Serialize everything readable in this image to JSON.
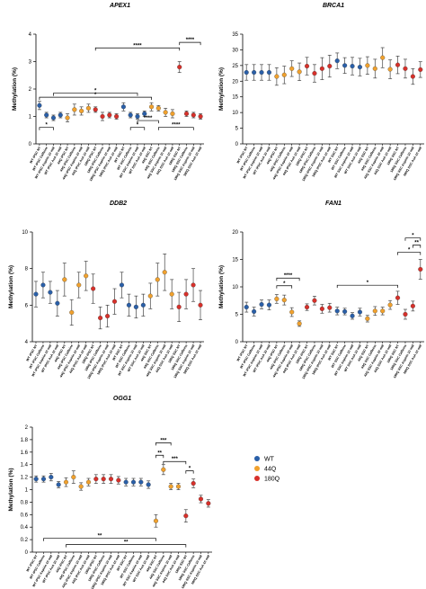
{
  "legend": [
    {
      "label": "WT",
      "color": "#2a5fa8"
    },
    {
      "label": "44Q",
      "color": "#f0a12e"
    },
    {
      "label": "180Q",
      "color": "#d7302a"
    }
  ],
  "chart_data": [
    {
      "type": "scatter",
      "title": "APEX1",
      "ylabel": "Methylation (%)",
      "ylim": [
        0,
        4
      ],
      "yticks": [
        0,
        1,
        2,
        3,
        4
      ],
      "categories": [
        "WT iPSC NT",
        "WT iPSC Caffeine",
        "WT iPSC Aspirin 10 mM",
        "WT iPSC AsA 10 mM",
        "44Q iPSC NT",
        "44Q iPSC Caffeine",
        "44Q iPSC Aspirin 10 mM",
        "44Q iPSC AsA 10 mM",
        "180Q iPSC NT",
        "180Q iPSC Caffeine",
        "180Q iPSC Aspirin 10 mM",
        "180Q iPSC AsA 10 mM",
        "WT SSC NT",
        "WT SSC Caffeine",
        "WT SSC Aspirin 10 mM",
        "WT SSC AsA 10 mM",
        "44Q SSC NT",
        "44Q SSC Caffeine",
        "44Q SSC Aspirin 10 mM",
        "44Q SSC AsA 10 mM",
        "180Q SSC NT",
        "180Q SSC Caffeine",
        "180Q SSC Aspirin 10 mM",
        "180Q SSC AsA 10 mM"
      ],
      "groups": [
        "WT",
        "WT",
        "WT",
        "WT",
        "44Q",
        "44Q",
        "44Q",
        "44Q",
        "180Q",
        "180Q",
        "180Q",
        "180Q",
        "WT",
        "WT",
        "WT",
        "WT",
        "44Q",
        "44Q",
        "44Q",
        "44Q",
        "180Q",
        "180Q",
        "180Q",
        "180Q"
      ],
      "values": [
        1.4,
        1.05,
        0.95,
        1.05,
        0.95,
        1.25,
        1.2,
        1.3,
        1.25,
        1.0,
        1.05,
        1.0,
        1.35,
        1.05,
        1.0,
        1.1,
        1.35,
        1.3,
        1.15,
        1.1,
        2.8,
        1.1,
        1.05,
        1.0
      ],
      "errors": [
        0.15,
        0.1,
        0.1,
        0.1,
        0.15,
        0.2,
        0.15,
        0.15,
        0.1,
        0.15,
        0.1,
        0.1,
        0.15,
        0.1,
        0.1,
        0.1,
        0.15,
        0.1,
        0.15,
        0.15,
        0.2,
        0.1,
        0.1,
        0.1
      ],
      "brackets": [
        {
          "from": 0,
          "to": 2,
          "y": 0.6,
          "label": "*"
        },
        {
          "from": 2,
          "to": 14,
          "y": 1.85,
          "label": "*"
        },
        {
          "from": 0,
          "to": 16,
          "y": 1.7,
          "label": "*"
        },
        {
          "from": 13,
          "to": 15,
          "y": 0.6,
          "label": "*"
        },
        {
          "from": 14,
          "to": 17,
          "y": 0.85,
          "label": "****"
        },
        {
          "from": 17,
          "to": 22,
          "y": 0.6,
          "label": "****"
        },
        {
          "from": 8,
          "to": 20,
          "y": 3.5,
          "label": "****"
        },
        {
          "from": 20,
          "to": 23,
          "y": 3.7,
          "label": "****"
        }
      ]
    },
    {
      "type": "scatter",
      "title": "BRCA1",
      "ylabel": "Methylation (%)",
      "ylim": [
        0,
        35
      ],
      "yticks": [
        0,
        5,
        10,
        15,
        20,
        25,
        30,
        35
      ],
      "categories": [
        "WT iPSC NT",
        "WT iPSC Caffeine",
        "WT iPSC Aspirin 10 mM",
        "WT iPSC AsA 10 mM",
        "44Q iPSC NT",
        "44Q iPSC Caffeine",
        "44Q iPSC Aspirin 10 mM",
        "44Q iPSC AsA 10 mM",
        "180Q iPSC NT",
        "180Q iPSC Caffeine",
        "180Q iPSC Aspirin 10 mM",
        "180Q iPSC AsA 10 mM",
        "WT SSC NT",
        "WT SSC Caffeine",
        "WT SSC Aspirin 10 mM",
        "WT SSC AsA 10 mM",
        "44Q SSC NT",
        "44Q SSC Caffeine",
        "44Q SSC Aspirin 10 mM",
        "44Q SSC AsA 10 mM",
        "180Q SSC NT",
        "180Q SSC Caffeine",
        "180Q SSC Aspirin 10 mM",
        "180Q SSC AsA 10 mM"
      ],
      "groups": [
        "WT",
        "WT",
        "WT",
        "WT",
        "44Q",
        "44Q",
        "44Q",
        "44Q",
        "180Q",
        "180Q",
        "180Q",
        "180Q",
        "WT",
        "WT",
        "WT",
        "WT",
        "44Q",
        "44Q",
        "44Q",
        "44Q",
        "180Q",
        "180Q",
        "180Q",
        "180Q"
      ],
      "values": [
        22.8,
        22.8,
        22.8,
        22.8,
        21.5,
        22,
        24,
        23,
        24.8,
        22.5,
        24,
        24.8,
        26.5,
        25,
        24.8,
        24.5,
        25,
        24,
        27.5,
        23.8,
        25.2,
        24,
        21.5,
        23.7
      ],
      "errors": [
        2.5,
        2.5,
        2.5,
        2.5,
        2.8,
        2.8,
        2.5,
        2.8,
        2.8,
        2.8,
        3.5,
        3.5,
        2.5,
        2.5,
        2.8,
        2.8,
        2.8,
        3,
        3.2,
        3,
        2.8,
        3,
        2.5,
        2.5
      ],
      "brackets": []
    },
    {
      "type": "scatter",
      "title": "DDB2",
      "ylabel": "Methylation (%)",
      "ylim": [
        4,
        10
      ],
      "yticks": [
        4,
        6,
        8,
        10
      ],
      "categories": [
        "WT iPSC NT",
        "WT iPSC Caffeine",
        "WT iPSC Aspirin 10 mM",
        "WT iPSC AsA 10 mM",
        "44Q iPSC NT",
        "44Q iPSC Caffeine",
        "44Q iPSC Aspirin 10 mM",
        "44Q iPSC AsA 10 mM",
        "180Q iPSC NT",
        "180Q iPSC Caffeine",
        "180Q iPSC Aspirin 10 mM",
        "180Q iPSC AsA 10 mM",
        "WT SSC NT",
        "WT SSC Caffeine",
        "WT SSC Aspirin 10 mM",
        "WT SSC AsA 10 mM",
        "44Q SSC NT",
        "44Q SSC Caffeine",
        "44Q SSC Aspirin 10 mM",
        "44Q SSC AsA 10 mM",
        "180Q SSC NT",
        "180Q SSC Caffeine",
        "180Q SSC Aspirin 10 mM",
        "180Q SSC AsA 10 mM"
      ],
      "groups": [
        "WT",
        "WT",
        "WT",
        "WT",
        "44Q",
        "44Q",
        "44Q",
        "44Q",
        "180Q",
        "180Q",
        "180Q",
        "180Q",
        "WT",
        "WT",
        "WT",
        "WT",
        "44Q",
        "44Q",
        "44Q",
        "44Q",
        "180Q",
        "180Q",
        "180Q",
        "180Q"
      ],
      "values": [
        6.6,
        7.1,
        6.7,
        6.1,
        7.4,
        5.6,
        7.1,
        7.6,
        6.9,
        5.3,
        5.4,
        6.2,
        7.1,
        6.0,
        5.9,
        6.0,
        6.5,
        7.4,
        7.8,
        6.6,
        5.9,
        6.6,
        7.1,
        6.0
      ],
      "errors": [
        0.7,
        0.7,
        0.6,
        0.7,
        0.9,
        0.7,
        0.7,
        0.8,
        0.8,
        0.6,
        0.6,
        0.7,
        0.7,
        0.6,
        0.6,
        0.6,
        0.7,
        0.9,
        1.0,
        0.8,
        0.8,
        0.8,
        0.9,
        0.8
      ],
      "brackets": []
    },
    {
      "type": "scatter",
      "title": "FAN1",
      "ylabel": "Methylation (%)",
      "ylim": [
        0,
        20
      ],
      "yticks": [
        0,
        5,
        10,
        15,
        20
      ],
      "categories": [
        "WT iPSC NT",
        "WT iPSC Caffeine",
        "WT iPSC Aspirin 10 mM",
        "WT iPSC AsA 10 mM",
        "44Q iPSC NT",
        "44Q iPSC Caffeine",
        "44Q iPSC Aspirin 10 mM",
        "44Q iPSC AsA 10 mM",
        "180Q iPSC NT",
        "180Q iPSC Caffeine",
        "180Q iPSC Aspirin 10 mM",
        "180Q iPSC AsA 10 mM",
        "WT SSC NT",
        "WT SSC Caffeine",
        "WT SSC Aspirin 10 mM",
        "WT SSC AsA 10 mM",
        "44Q SSC NT",
        "44Q SSC Caffeine",
        "44Q SSC Aspirin 10 mM",
        "44Q SSC AsA 10 mM",
        "180Q SSC NT",
        "180Q SSC Caffeine",
        "180Q SSC Aspirin 10 mM",
        "180Q SSC AsA 10 mM"
      ],
      "groups": [
        "WT",
        "WT",
        "WT",
        "WT",
        "44Q",
        "44Q",
        "44Q",
        "44Q",
        "180Q",
        "180Q",
        "180Q",
        "180Q",
        "WT",
        "WT",
        "WT",
        "WT",
        "44Q",
        "44Q",
        "44Q",
        "44Q",
        "180Q",
        "180Q",
        "180Q",
        "180Q"
      ],
      "values": [
        6.3,
        5.5,
        6.8,
        6.7,
        7.8,
        7.6,
        5.4,
        3.3,
        6.3,
        7.5,
        6.0,
        6.2,
        5.6,
        5.5,
        4.7,
        5.4,
        4.2,
        5.6,
        5.6,
        6.7,
        8.0,
        5.0,
        6.5,
        13.2
      ],
      "errors": [
        0.9,
        0.8,
        0.8,
        0.9,
        0.8,
        0.9,
        0.8,
        0.5,
        0.6,
        0.8,
        0.8,
        0.8,
        0.7,
        0.6,
        0.6,
        0.7,
        0.6,
        0.8,
        0.7,
        0.8,
        1.2,
        0.9,
        0.9,
        1.8
      ],
      "brackets": [
        {
          "from": 4,
          "to": 6,
          "y": 10.2,
          "label": "*"
        },
        {
          "from": 4,
          "to": 7,
          "y": 11.6,
          "label": "****"
        },
        {
          "from": 12,
          "to": 20,
          "y": 10.3,
          "label": "*"
        },
        {
          "from": 20,
          "to": 23,
          "y": 16.3,
          "label": "*"
        },
        {
          "from": 22,
          "to": 23,
          "y": 17.6,
          "label": "**"
        },
        {
          "from": 21,
          "to": 23,
          "y": 18.9,
          "label": "*"
        }
      ]
    },
    {
      "type": "scatter",
      "title": "OGG1",
      "ylabel": "Methylation (%)",
      "ylim": [
        0,
        2.0
      ],
      "yticks": [
        0,
        0.2,
        0.4,
        0.6,
        0.8,
        1.0,
        1.2,
        1.4,
        1.6,
        1.8,
        2.0
      ],
      "categories": [
        "WT iPSC NT",
        "WT iPSC Caffeine",
        "WT iPSC Aspirin 10 mM",
        "WT iPSC AsA 10 mM",
        "44Q iPSC NT",
        "44Q iPSC Caffeine",
        "44Q iPSC Aspirin 10 mM",
        "44Q iPSC AsA 10 mM",
        "180Q iPSC NT",
        "180Q iPSC Caffeine",
        "180Q iPSC Aspirin 10 mM",
        "180Q iPSC AsA 10 mM",
        "WT SSC NT",
        "WT SSC Caffeine",
        "WT SSC Aspirin 10 mM",
        "WT SSC AsA 10 mM",
        "44Q SSC NT",
        "44Q SSC Caffeine",
        "44Q SSC Aspirin 10 mM",
        "44Q SSC AsA 10 mM",
        "180Q SSC NT",
        "180Q SSC Caffeine",
        "180Q SSC Aspirin 10 mM",
        "180Q SSC AsA 10 mM"
      ],
      "groups": [
        "WT",
        "WT",
        "WT",
        "WT",
        "44Q",
        "44Q",
        "44Q",
        "44Q",
        "180Q",
        "180Q",
        "180Q",
        "180Q",
        "WT",
        "WT",
        "WT",
        "WT",
        "44Q",
        "44Q",
        "44Q",
        "44Q",
        "180Q",
        "180Q",
        "180Q",
        "180Q"
      ],
      "values": [
        1.17,
        1.17,
        1.2,
        1.08,
        1.12,
        1.2,
        1.05,
        1.12,
        1.17,
        1.17,
        1.17,
        1.15,
        1.12,
        1.12,
        1.12,
        1.08,
        0.5,
        1.32,
        1.05,
        1.05,
        0.58,
        1.1,
        0.85,
        0.78
      ],
      "errors": [
        0.05,
        0.05,
        0.06,
        0.05,
        0.07,
        0.1,
        0.06,
        0.06,
        0.07,
        0.07,
        0.07,
        0.06,
        0.06,
        0.06,
        0.06,
        0.06,
        0.1,
        0.08,
        0.05,
        0.05,
        0.1,
        0.07,
        0.06,
        0.06
      ],
      "brackets": [
        {
          "from": 1,
          "to": 16,
          "y": 0.22,
          "label": "**"
        },
        {
          "from": 4,
          "to": 20,
          "y": 0.12,
          "label": "**"
        },
        {
          "from": 16,
          "to": 17,
          "y": 1.55,
          "label": "**"
        },
        {
          "from": 17,
          "to": 20,
          "y": 1.45,
          "label": "***"
        },
        {
          "from": 16,
          "to": 18,
          "y": 1.75,
          "label": "***"
        },
        {
          "from": 20,
          "to": 21,
          "y": 1.3,
          "label": "*"
        }
      ]
    }
  ]
}
